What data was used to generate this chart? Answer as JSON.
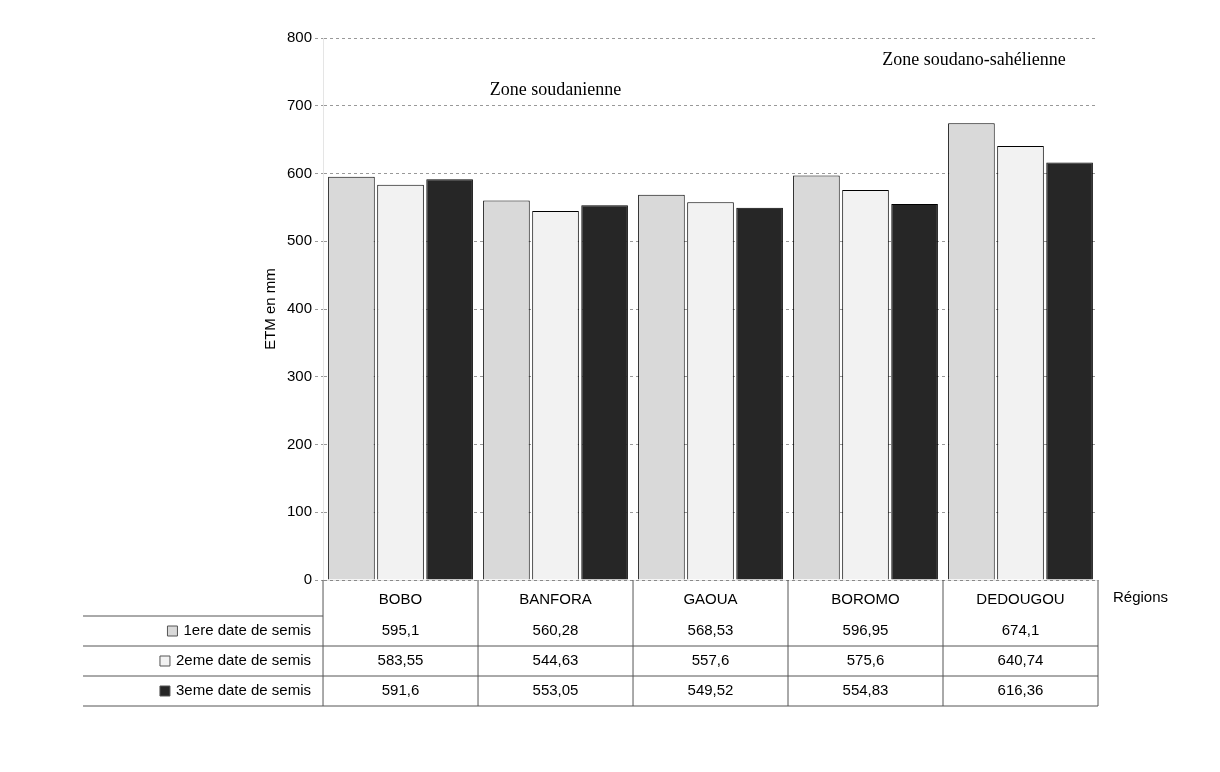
{
  "chart_data": {
    "type": "bar",
    "ylabel": "ETM en mm",
    "xlabel": "Régions",
    "categories": [
      "BOBO",
      "BANFORA",
      "GAOUA",
      "BOROMO",
      "DEDOUGOU"
    ],
    "series": [
      {
        "name": "1ere date de semis",
        "color": "#d9d9d9",
        "values": [
          595.1,
          560.28,
          568.53,
          596.95,
          674.1
        ],
        "value_labels": [
          "595,1",
          "560,28",
          "568,53",
          "596,95",
          "674,1"
        ]
      },
      {
        "name": "2eme date de semis",
        "color": "#f2f2f2",
        "values": [
          583.55,
          544.63,
          557.6,
          575.6,
          640.74
        ],
        "value_labels": [
          "583,55",
          "544,63",
          "557,6",
          "575,6",
          "640,74"
        ]
      },
      {
        "name": "3eme date de semis",
        "color": "#262626",
        "values": [
          591.6,
          553.05,
          549.52,
          554.83,
          616.36
        ],
        "value_labels": [
          "591,6",
          "553,05",
          "549,52",
          "554,83",
          "616,36"
        ]
      }
    ],
    "ylim": [
      0,
      800
    ],
    "yticks": [
      0,
      100,
      200,
      300,
      400,
      500,
      600,
      700,
      800
    ],
    "grid": "y",
    "legend": "bottom",
    "annotations": [
      "Zone soudanienne",
      "Zone soudano-sahélienne"
    ]
  }
}
